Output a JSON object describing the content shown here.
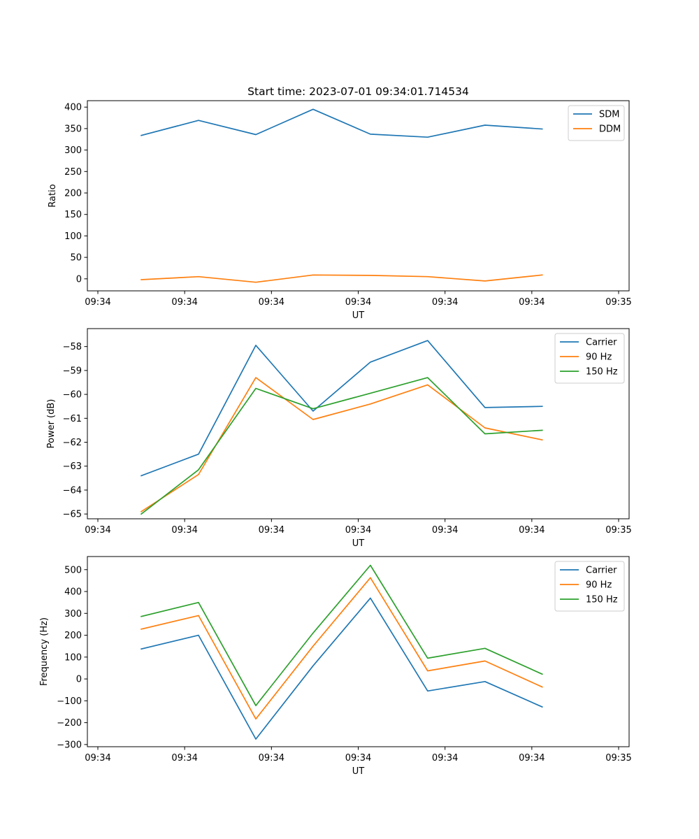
{
  "figure": {
    "title": "Start time: 2023-07-01 09:34:01.714534"
  },
  "chart_data": [
    {
      "type": "line",
      "xlabel": "UT",
      "ylabel": "Ratio",
      "xlim": [
        0,
        9
      ],
      "ylim": [
        -28,
        415
      ],
      "xticks": [
        {
          "pos": 0,
          "label": "09:34"
        },
        {
          "pos": 1.5,
          "label": "09:34"
        },
        {
          "pos": 3,
          "label": "09:34"
        },
        {
          "pos": 4.5,
          "label": "09:34"
        },
        {
          "pos": 6,
          "label": "09:34"
        },
        {
          "pos": 7.5,
          "label": "09:34"
        },
        {
          "pos": 9,
          "label": "09:35"
        }
      ],
      "yticks": [
        0,
        50,
        100,
        150,
        200,
        250,
        300,
        350,
        400
      ],
      "x": [
        0.75,
        1.74,
        2.73,
        3.72,
        4.71,
        5.7,
        6.69,
        7.68
      ],
      "series": [
        {
          "name": "SDM",
          "color": "#1f77b4",
          "values": [
            334,
            369,
            336,
            395,
            337,
            330,
            358,
            349
          ]
        },
        {
          "name": "DDM",
          "color": "#ff7f0e",
          "values": [
            -2,
            5,
            -8,
            9,
            8,
            5,
            -5,
            9
          ]
        }
      ],
      "legend": "top-right"
    },
    {
      "type": "line",
      "xlabel": "UT",
      "ylabel": "Power (dB)",
      "xlim": [
        0,
        9
      ],
      "ylim": [
        -65.2,
        -57.25
      ],
      "xticks": [
        {
          "pos": 0,
          "label": "09:34"
        },
        {
          "pos": 1.5,
          "label": "09:34"
        },
        {
          "pos": 3,
          "label": "09:34"
        },
        {
          "pos": 4.5,
          "label": "09:34"
        },
        {
          "pos": 6,
          "label": "09:34"
        },
        {
          "pos": 7.5,
          "label": "09:34"
        },
        {
          "pos": 9,
          "label": "09:35"
        }
      ],
      "yticks": [
        -65,
        -64,
        -63,
        -62,
        -61,
        -60,
        -59,
        -58
      ],
      "x": [
        0.75,
        1.74,
        2.73,
        3.72,
        4.71,
        5.7,
        6.69,
        7.68
      ],
      "series": [
        {
          "name": "Carrier",
          "color": "#1f77b4",
          "values": [
            -63.4,
            -62.5,
            -57.95,
            -60.7,
            -58.65,
            -57.75,
            -60.55,
            -60.5
          ]
        },
        {
          "name": "90 Hz",
          "color": "#ff7f0e",
          "values": [
            -64.9,
            -63.35,
            -59.3,
            -61.05,
            -60.4,
            -59.6,
            -61.4,
            -61.9
          ]
        },
        {
          "name": "150 Hz",
          "color": "#2ca02c",
          "values": [
            -65.0,
            -63.15,
            -59.75,
            -60.6,
            -59.95,
            -59.3,
            -61.65,
            -61.5
          ]
        }
      ],
      "legend": "top-right"
    },
    {
      "type": "line",
      "xlabel": "UT",
      "ylabel": "Frequency (Hz)",
      "xlim": [
        0,
        9
      ],
      "ylim": [
        -310,
        560
      ],
      "xticks": [
        {
          "pos": 0,
          "label": "09:34"
        },
        {
          "pos": 1.5,
          "label": "09:34"
        },
        {
          "pos": 3,
          "label": "09:34"
        },
        {
          "pos": 4.5,
          "label": "09:34"
        },
        {
          "pos": 6,
          "label": "09:34"
        },
        {
          "pos": 7.5,
          "label": "09:34"
        },
        {
          "pos": 9,
          "label": "09:35"
        }
      ],
      "yticks": [
        -300,
        -200,
        -100,
        0,
        100,
        200,
        300,
        400,
        500
      ],
      "x": [
        0.75,
        1.74,
        2.73,
        3.72,
        4.71,
        5.7,
        6.69,
        7.68
      ],
      "series": [
        {
          "name": "Carrier",
          "color": "#1f77b4",
          "values": [
            137,
            200,
            -275,
            60,
            370,
            -55,
            -12,
            -128
          ]
        },
        {
          "name": "90 Hz",
          "color": "#ff7f0e",
          "values": [
            228,
            290,
            -183,
            150,
            463,
            37,
            82,
            -37
          ]
        },
        {
          "name": "150 Hz",
          "color": "#2ca02c",
          "values": [
            286,
            350,
            -122,
            210,
            520,
            95,
            140,
            22
          ]
        }
      ],
      "legend": "top-right"
    }
  ]
}
